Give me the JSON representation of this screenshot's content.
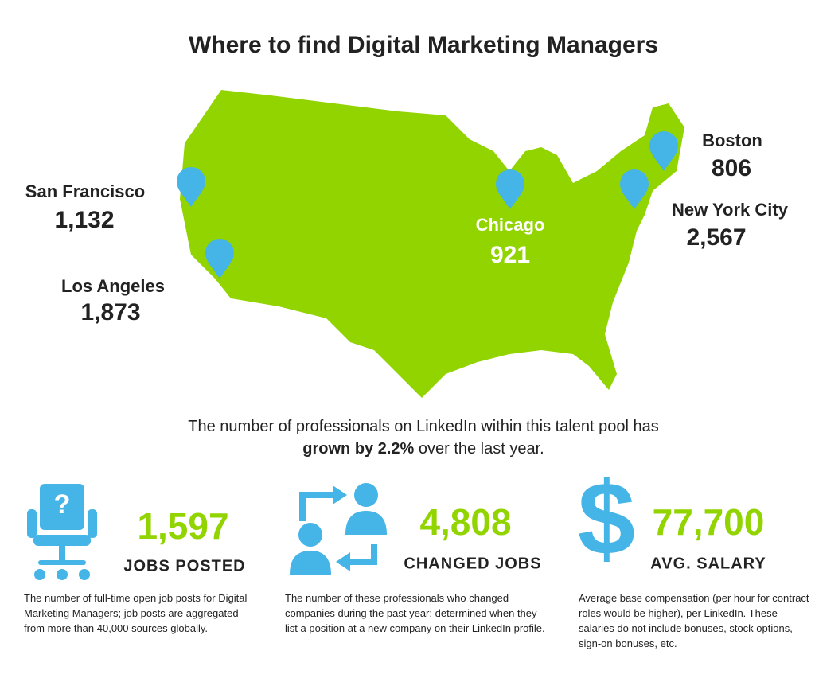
{
  "header": {
    "title": "Where to find Digital Marketing Managers"
  },
  "cities": [
    {
      "name": "San Francisco",
      "count": "1,132"
    },
    {
      "name": "Los Angeles",
      "count": "1,873"
    },
    {
      "name": "Chicago",
      "count": "921"
    },
    {
      "name": "Boston",
      "count": "806"
    },
    {
      "name": "New York City",
      "count": "2,567"
    }
  ],
  "summary": {
    "before": "The number of professionals on LinkedIn within this talent pool has",
    "bold": "grown by 2.2%",
    "after": "over the last year."
  },
  "stats": [
    {
      "value": "1,597",
      "label": "JOBS POSTED",
      "note": "The number of full-time open job posts for Digital Marketing Managers; job posts are aggregated from more than 40,000 sources globally."
    },
    {
      "value": "4,808",
      "label": "CHANGED JOBS",
      "note": "The number of these professionals who changed companies during the past year; determined when they list a position at a new company on their LinkedIn profile."
    },
    {
      "value": "77,700",
      "label": "AVG. SALARY",
      "note": "Average base compensation (per hour for contract roles would be higher), per LinkedIn. These salaries do not include bonuses, stock options, sign-on bonuses, etc."
    }
  ]
}
